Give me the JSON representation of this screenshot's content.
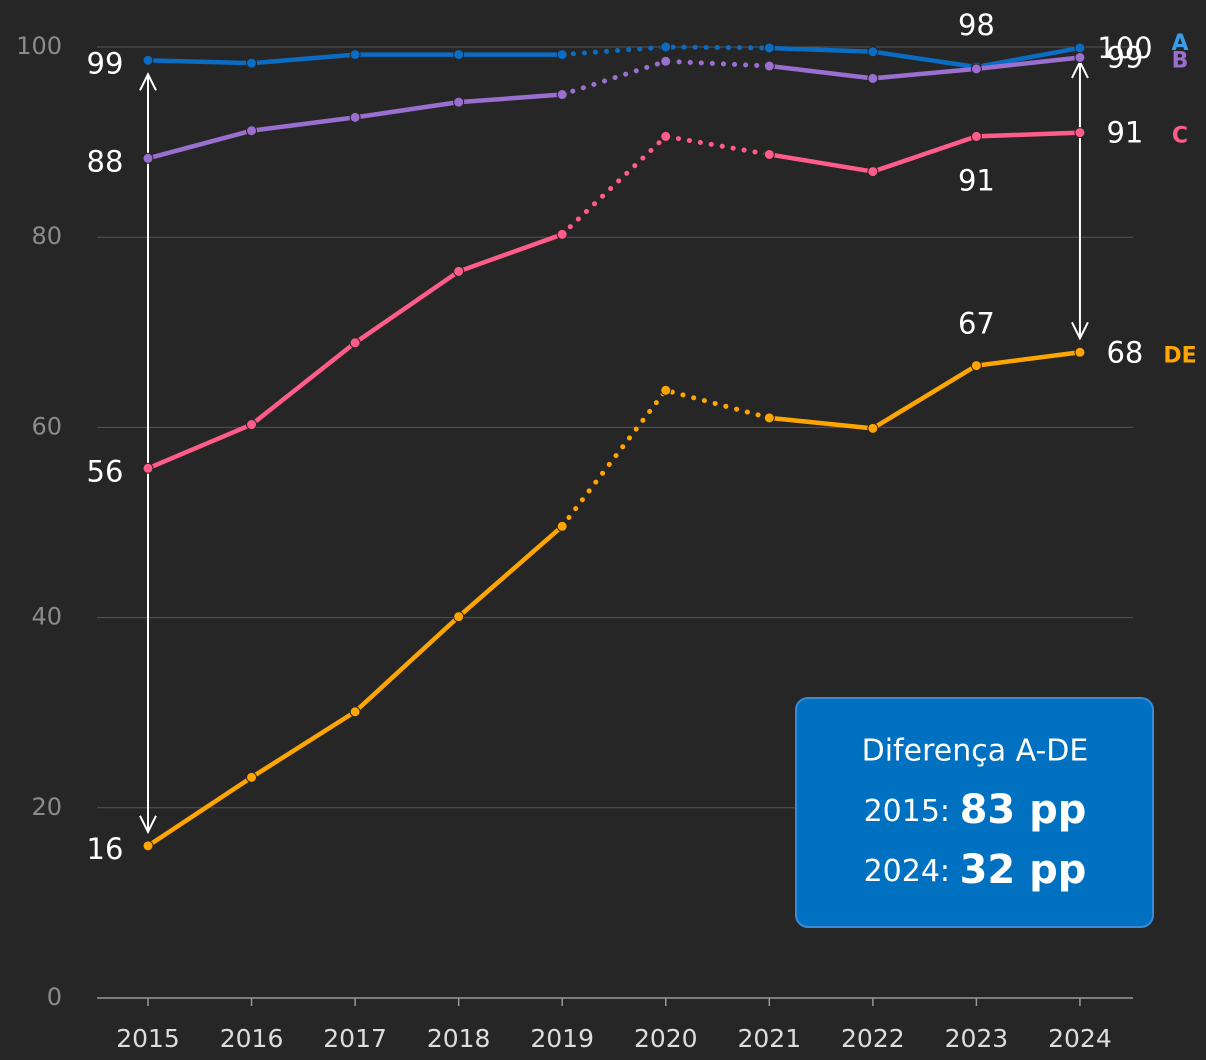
{
  "chart_data": {
    "type": "line",
    "categories": [
      "2015",
      "2016",
      "2017",
      "2018",
      "2019",
      "2020",
      "2021",
      "2022",
      "2023",
      "2024"
    ],
    "ylim": [
      0,
      100
    ],
    "yticks": [
      0,
      20,
      40,
      60,
      80,
      100
    ],
    "grid": true,
    "series": [
      {
        "name": "A",
        "color": "#0a6cc2",
        "label_color": "#3b9de8",
        "values": [
          98.6,
          98.3,
          99.2,
          99.2,
          99.2,
          100,
          99.9,
          99.5,
          97.9,
          99.9
        ],
        "value_labels": [
          "99",
          null,
          null,
          null,
          null,
          null,
          null,
          null,
          "98",
          "100"
        ]
      },
      {
        "name": "B",
        "color": "#9a6fd0",
        "label_color": "#9a6fd0",
        "values": [
          88.3,
          91.2,
          92.6,
          94.2,
          95,
          98.5,
          98,
          96.7,
          97.7,
          98.9
        ],
        "value_labels": [
          "88",
          null,
          null,
          null,
          null,
          null,
          null,
          null,
          null,
          "99"
        ]
      },
      {
        "name": "C",
        "color": "#ff5c8a",
        "label_color": "#ff5c8a",
        "values": [
          55.7,
          60.3,
          68.9,
          76.4,
          80.3,
          90.6,
          88.7,
          86.9,
          90.6,
          91
        ],
        "value_labels": [
          "56",
          null,
          null,
          null,
          null,
          null,
          null,
          null,
          "91",
          "91"
        ]
      },
      {
        "name": "DE",
        "color": "#ffa500",
        "label_color": "#ffa500",
        "values": [
          16,
          23.2,
          30.1,
          40.1,
          49.6,
          63.9,
          61,
          59.9,
          66.5,
          67.9
        ],
        "value_labels": [
          "16",
          null,
          null,
          null,
          null,
          null,
          null,
          null,
          "67",
          "68"
        ]
      }
    ],
    "annotation": {
      "title": "Diferença A-DE",
      "lines": [
        {
          "label": "2015:",
          "value": "83 pp"
        },
        {
          "label": "2024:",
          "value": "32 pp"
        }
      ]
    }
  }
}
